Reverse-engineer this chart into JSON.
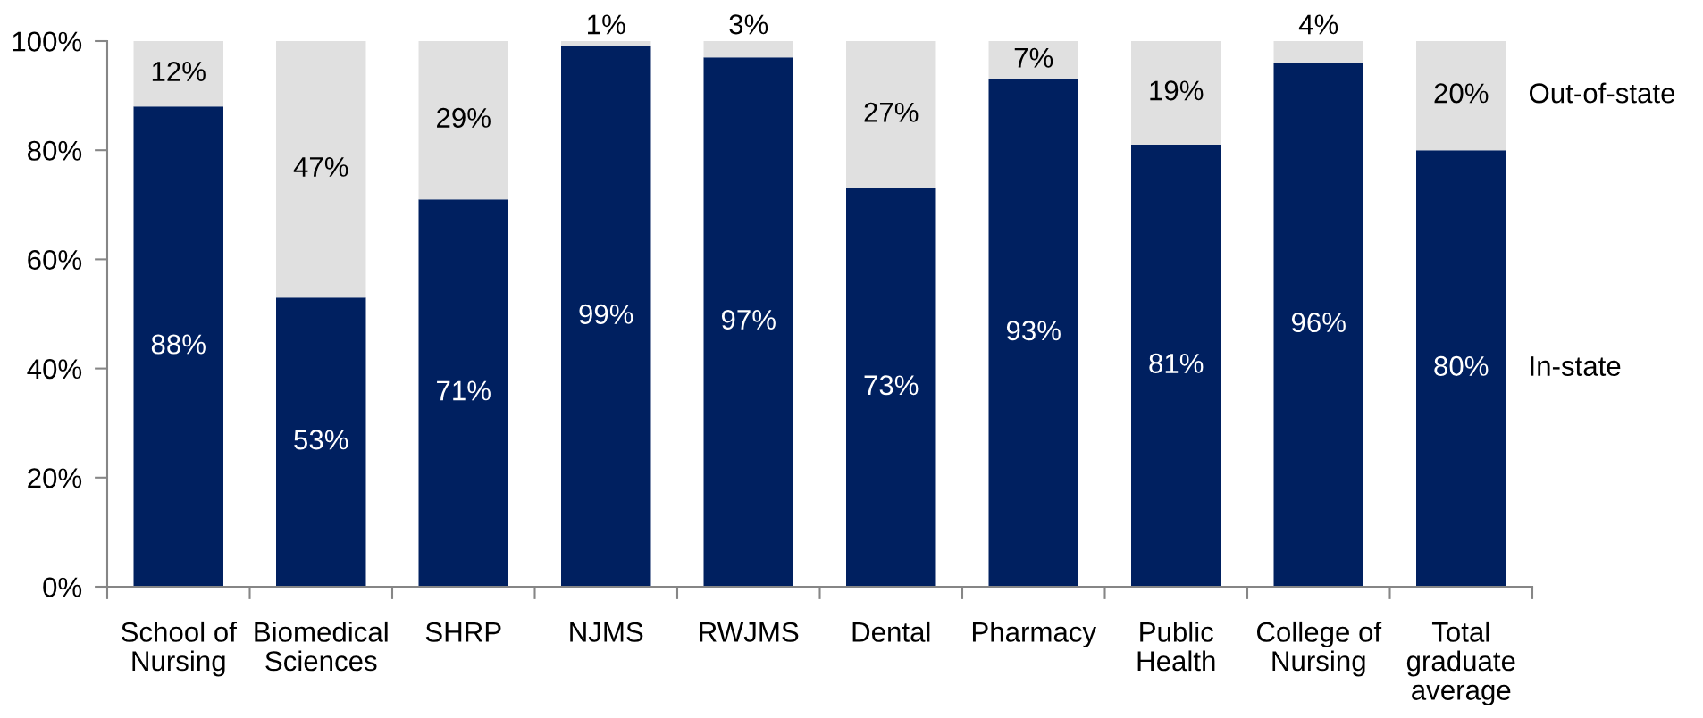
{
  "chart_data": {
    "type": "bar",
    "stacked": true,
    "categories": [
      "School of\nNursing",
      "Biomedical\nSciences",
      "SHRP",
      "NJMS",
      "RWJMS",
      "Dental",
      "Pharmacy",
      "Public\nHealth",
      "College of\nNursing",
      "Total\ngraduate\naverage"
    ],
    "series": [
      {
        "name": "In-state",
        "color": "#002060",
        "values": [
          88,
          53,
          71,
          99,
          97,
          73,
          93,
          81,
          96,
          80
        ],
        "value_labels": [
          "88%",
          "53%",
          "71%",
          "99%",
          "97%",
          "73%",
          "93%",
          "81%",
          "96%",
          "80%"
        ]
      },
      {
        "name": "Out-of-state",
        "color": "#e0e0e0",
        "values": [
          12,
          47,
          29,
          1,
          3,
          27,
          7,
          19,
          4,
          20
        ],
        "value_labels": [
          "12%",
          "47%",
          "29%",
          "1%",
          "3%",
          "27%",
          "7%",
          "19%",
          "4%",
          "20%"
        ]
      }
    ],
    "ylim": [
      0,
      100
    ],
    "yticks": [
      {
        "value": 0,
        "label": "0%"
      },
      {
        "value": 20,
        "label": "20%"
      },
      {
        "value": 40,
        "label": "40%"
      },
      {
        "value": 60,
        "label": "60%"
      },
      {
        "value": 80,
        "label": "80%"
      },
      {
        "value": 100,
        "label": "100%"
      }
    ]
  }
}
